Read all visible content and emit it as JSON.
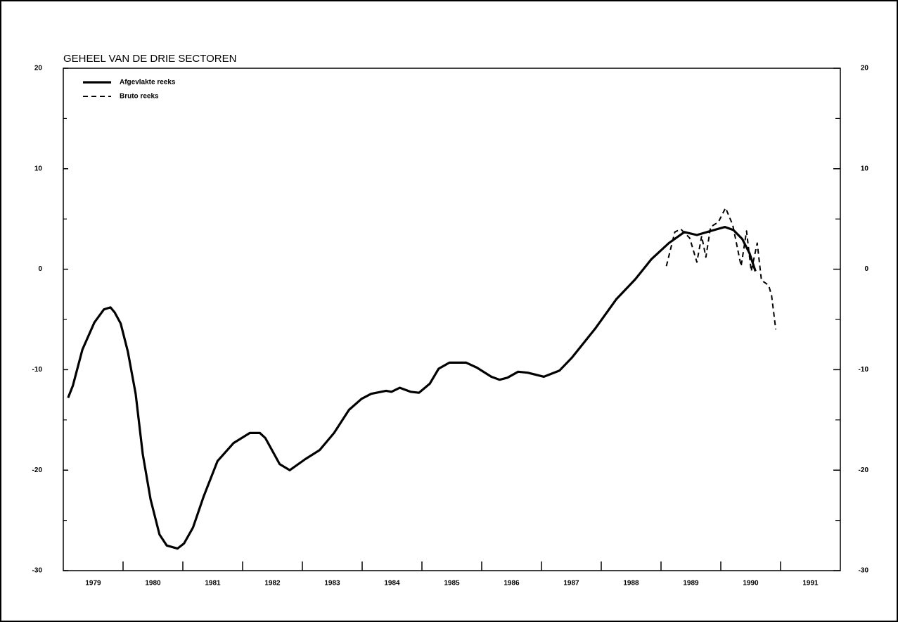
{
  "chart_data": {
    "type": "line",
    "title": "GEHEEL VAN DE DRIE SECTOREN",
    "xlim": [
      1979,
      1992
    ],
    "xticks": [
      {
        "value": 1979.5,
        "label": "1979"
      },
      {
        "value": 1980.5,
        "label": "1980"
      },
      {
        "value": 1981.5,
        "label": "1981"
      },
      {
        "value": 1982.5,
        "label": "1982"
      },
      {
        "value": 1983.5,
        "label": "1983"
      },
      {
        "value": 1984.5,
        "label": "1984"
      },
      {
        "value": 1985.5,
        "label": "1985"
      },
      {
        "value": 1986.5,
        "label": "1986"
      },
      {
        "value": 1987.5,
        "label": "1987"
      },
      {
        "value": 1988.5,
        "label": "1988"
      },
      {
        "value": 1989.5,
        "label": "1989"
      },
      {
        "value": 1990.5,
        "label": "1990"
      },
      {
        "value": 1991.5,
        "label": "1991"
      }
    ],
    "xtick_marks": [
      1980,
      1981,
      1982,
      1983,
      1984,
      1985,
      1986,
      1987,
      1988,
      1989,
      1990,
      1991
    ],
    "ylim": [
      -30,
      20
    ],
    "yticks": [
      -30,
      -20,
      -10,
      0,
      10,
      20
    ],
    "yminor_ticks": [
      -25,
      -15,
      -5,
      5,
      15
    ],
    "legend": "upper left",
    "series": [
      {
        "name": "Afgevlakte reeks",
        "color": "#000000",
        "style": "solid",
        "x": [
          1979.08,
          1979.16,
          1979.32,
          1979.52,
          1979.68,
          1979.79,
          1979.86,
          1979.96,
          1980.08,
          1980.21,
          1980.33,
          1980.46,
          1980.61,
          1980.73,
          1980.91,
          1981.02,
          1981.17,
          1981.35,
          1981.58,
          1981.85,
          1982.12,
          1982.29,
          1982.38,
          1982.62,
          1982.79,
          1983.05,
          1983.29,
          1983.53,
          1983.78,
          1983.99,
          1984.15,
          1984.4,
          1984.49,
          1984.63,
          1984.81,
          1984.95,
          1985.13,
          1985.28,
          1985.46,
          1985.74,
          1985.92,
          1986.16,
          1986.3,
          1986.43,
          1986.61,
          1986.77,
          1987.04,
          1987.3,
          1987.51,
          1987.9,
          1988.25,
          1988.57,
          1988.84,
          1989.13,
          1989.39,
          1989.6,
          1989.83,
          1990.07,
          1990.21,
          1990.36,
          1990.48,
          1990.58
        ],
        "values": [
          -12.8,
          -11.6,
          -8.0,
          -5.3,
          -4.0,
          -3.8,
          -4.3,
          -5.4,
          -8.2,
          -12.4,
          -18.4,
          -22.9,
          -26.4,
          -27.5,
          -27.8,
          -27.3,
          -25.7,
          -22.6,
          -19.1,
          -17.3,
          -16.3,
          -16.3,
          -16.8,
          -19.4,
          -20.0,
          -18.9,
          -18.0,
          -16.3,
          -14.0,
          -12.9,
          -12.4,
          -12.1,
          -12.2,
          -11.8,
          -12.2,
          -12.3,
          -11.4,
          -9.9,
          -9.3,
          -9.3,
          -9.8,
          -10.7,
          -11.0,
          -10.8,
          -10.2,
          -10.3,
          -10.7,
          -10.1,
          -8.8,
          -5.9,
          -3.0,
          -1.0,
          1.0,
          2.6,
          3.7,
          3.4,
          3.8,
          4.2,
          3.9,
          3.0,
          1.6,
          -0.2
        ]
      },
      {
        "name": "Bruto reeks",
        "color": "#000000",
        "style": "dashed",
        "x": [
          1989.09,
          1989.23,
          1989.33,
          1989.48,
          1989.6,
          1989.68,
          1989.75,
          1989.83,
          1989.96,
          1990.08,
          1990.2,
          1990.34,
          1990.43,
          1990.51,
          1990.61,
          1990.68,
          1990.8,
          1990.85,
          1990.92
        ],
        "values": [
          0.3,
          3.7,
          4.0,
          3.1,
          0.7,
          3.3,
          1.2,
          4.2,
          4.7,
          6.1,
          4.4,
          0.3,
          3.8,
          -0.2,
          2.6,
          -1.1,
          -1.6,
          -2.6,
          -6.0
        ]
      }
    ]
  }
}
